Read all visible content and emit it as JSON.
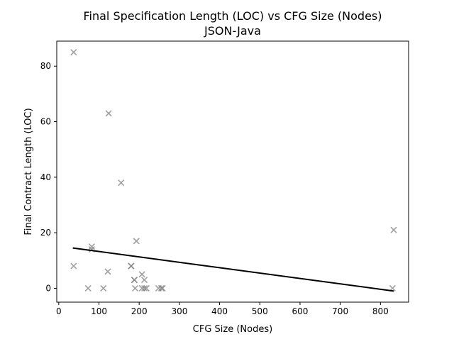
{
  "chart_data": {
    "type": "scatter",
    "title": "Final Specification Length (LOC) vs CFG Size (Nodes)",
    "subtitle": "JSON-Java",
    "xlabel": "CFG Size (Nodes)",
    "ylabel": "Final Contract Length (LOC)",
    "xlim": [
      -5,
      870
    ],
    "ylim": [
      -5,
      89
    ],
    "x_ticks": [
      0,
      100,
      200,
      300,
      400,
      500,
      600,
      700,
      800
    ],
    "y_ticks": [
      0,
      20,
      40,
      60,
      80
    ],
    "grid": false,
    "legend": "none",
    "marker": "x",
    "marker_color": "#808080",
    "line_color": "#000000",
    "points": [
      {
        "x": 37,
        "y": 85
      },
      {
        "x": 124,
        "y": 63
      },
      {
        "x": 155,
        "y": 38
      },
      {
        "x": 833,
        "y": 21
      },
      {
        "x": 193,
        "y": 17
      },
      {
        "x": 82,
        "y": 15
      },
      {
        "x": 82,
        "y": 14
      },
      {
        "x": 37,
        "y": 8
      },
      {
        "x": 180,
        "y": 8
      },
      {
        "x": 180,
        "y": 8
      },
      {
        "x": 122,
        "y": 6
      },
      {
        "x": 207,
        "y": 5
      },
      {
        "x": 188,
        "y": 3
      },
      {
        "x": 188,
        "y": 3
      },
      {
        "x": 213,
        "y": 3
      },
      {
        "x": 73,
        "y": 0
      },
      {
        "x": 111,
        "y": 0
      },
      {
        "x": 190,
        "y": 0
      },
      {
        "x": 207,
        "y": 0
      },
      {
        "x": 213,
        "y": 0
      },
      {
        "x": 218,
        "y": 0
      },
      {
        "x": 248,
        "y": 0
      },
      {
        "x": 255,
        "y": 0
      },
      {
        "x": 258,
        "y": 0
      },
      {
        "x": 830,
        "y": 0
      }
    ],
    "trend_line": {
      "x": [
        35,
        833
      ],
      "y": [
        14.5,
        -1
      ]
    }
  }
}
